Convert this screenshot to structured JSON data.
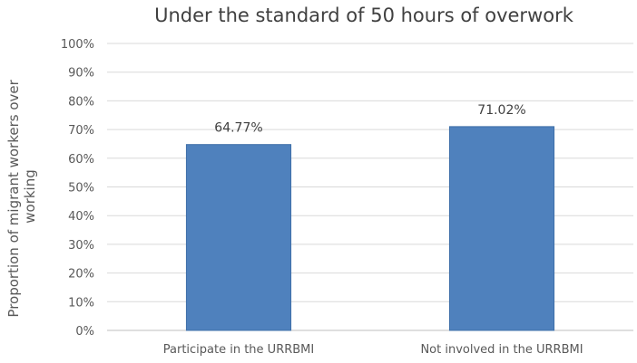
{
  "chart_data": {
    "type": "bar",
    "title": "Under the standard of 50 hours of overwork",
    "ylabel_lines": [
      "Proportion of migrant workers over",
      "working"
    ],
    "categories": [
      "Participate in the URRBMI",
      "Not involved in the URRBMI"
    ],
    "values": [
      64.77,
      71.02
    ],
    "data_labels": [
      "64.77%",
      "71.02%"
    ],
    "ylim": [
      0,
      100
    ],
    "yticks": [
      0,
      10,
      20,
      30,
      40,
      50,
      60,
      70,
      80,
      90,
      100
    ],
    "ytick_labels": [
      "0%",
      "10%",
      "20%",
      "30%",
      "40%",
      "50%",
      "60%",
      "70%",
      "80%",
      "90%",
      "100%"
    ],
    "grid": true,
    "legend": "none",
    "bar_color": "#4f81bd",
    "bar_edge_color": "#3f6fa8"
  }
}
